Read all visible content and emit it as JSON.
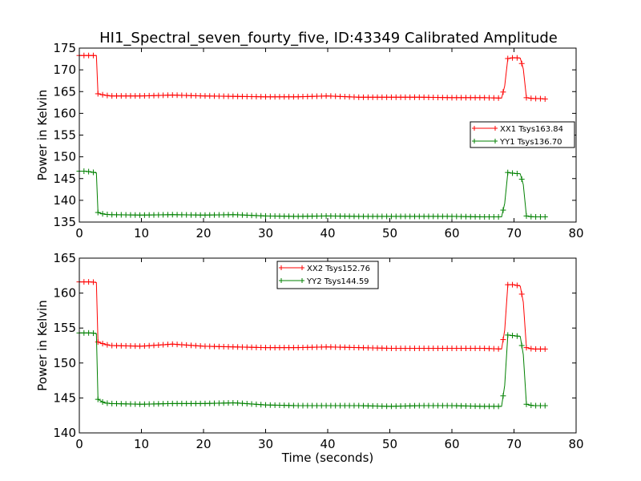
{
  "figure": {
    "title": "HI1_Spectral_seven_fourty_five, ID:43349 Calibrated Amplitude"
  },
  "chart_data": [
    {
      "type": "line",
      "title": "HI1_Spectral_seven_fourty_five, ID:43349 Calibrated Amplitude",
      "xlabel": "",
      "ylabel": "Power in Kelvin",
      "xlim": [
        0,
        80
      ],
      "ylim": [
        135,
        175
      ],
      "xticks": [
        0,
        10,
        20,
        30,
        40,
        50,
        60,
        70,
        80
      ],
      "yticks": [
        135,
        140,
        145,
        150,
        155,
        160,
        165,
        170,
        175
      ],
      "grid": false,
      "legend_position": "right",
      "x": [
        0.0,
        1.0,
        2.0,
        2.75,
        3.0,
        4.0,
        5.0,
        10.0,
        15.0,
        20.0,
        25.0,
        30.0,
        35.0,
        40.0,
        45.0,
        50.0,
        55.0,
        60.0,
        65.0,
        68.0,
        68.5,
        69.0,
        70.0,
        71.0,
        71.5,
        72.0,
        73.0,
        74.0,
        75.0
      ],
      "series": [
        {
          "name": "XX1 Tsys163.84",
          "color": "#ff0000",
          "values": [
            173.3,
            173.3,
            173.3,
            173.3,
            164.5,
            164.2,
            164.0,
            164.0,
            164.2,
            164.0,
            163.9,
            163.8,
            163.8,
            164.0,
            163.7,
            163.7,
            163.7,
            163.6,
            163.6,
            163.5,
            166.3,
            172.6,
            172.8,
            172.7,
            170.2,
            163.6,
            163.4,
            163.4,
            163.3
          ]
        },
        {
          "name": "YY1 Tsys136.70",
          "color": "#008000",
          "values": [
            146.7,
            146.7,
            146.5,
            146.3,
            137.2,
            136.8,
            136.7,
            136.6,
            136.7,
            136.6,
            136.7,
            136.4,
            136.3,
            136.4,
            136.3,
            136.3,
            136.3,
            136.3,
            136.2,
            136.2,
            139.3,
            146.4,
            146.2,
            146.1,
            143.6,
            136.4,
            136.2,
            136.2,
            136.2
          ]
        }
      ]
    },
    {
      "type": "line",
      "title": "",
      "xlabel": "Time (seconds)",
      "ylabel": "Power in Kelvin",
      "xlim": [
        0,
        80
      ],
      "ylim": [
        140,
        165
      ],
      "xticks": [
        0,
        10,
        20,
        30,
        40,
        50,
        60,
        70,
        80
      ],
      "yticks": [
        140,
        145,
        150,
        155,
        160,
        165
      ],
      "grid": false,
      "legend_position": "top-center",
      "x": [
        0.0,
        1.0,
        2.0,
        2.75,
        3.0,
        4.0,
        5.0,
        10.0,
        15.0,
        20.0,
        25.0,
        30.0,
        35.0,
        40.0,
        45.0,
        50.0,
        55.0,
        60.0,
        65.0,
        68.0,
        68.5,
        69.0,
        70.0,
        71.0,
        71.5,
        72.0,
        73.0,
        74.0,
        75.0
      ],
      "series": [
        {
          "name": "XX2 Tsys152.76",
          "color": "#ff0000",
          "values": [
            161.6,
            161.6,
            161.6,
            161.5,
            153.0,
            152.7,
            152.5,
            152.4,
            152.7,
            152.4,
            152.3,
            152.2,
            152.2,
            152.3,
            152.2,
            152.1,
            152.1,
            152.1,
            152.1,
            152.0,
            154.7,
            161.2,
            161.2,
            161.0,
            158.7,
            152.2,
            152.0,
            152.0,
            152.0
          ]
        },
        {
          "name": "YY2 Tsys144.59",
          "color": "#008000",
          "values": [
            154.3,
            154.3,
            154.3,
            154.2,
            144.8,
            144.3,
            144.2,
            144.1,
            144.2,
            144.2,
            144.3,
            144.0,
            143.9,
            143.9,
            143.9,
            143.8,
            143.9,
            143.9,
            143.8,
            143.8,
            146.8,
            154.0,
            153.9,
            153.8,
            151.2,
            144.1,
            143.9,
            143.9,
            143.9
          ]
        }
      ]
    }
  ]
}
